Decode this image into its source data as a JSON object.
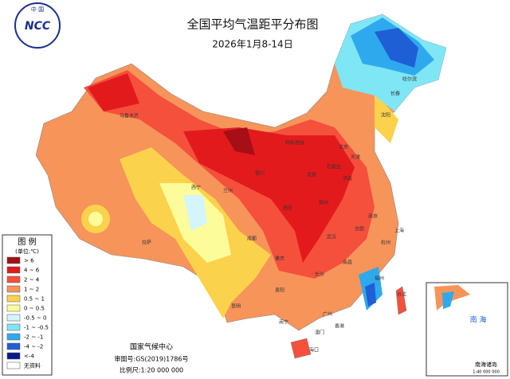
{
  "header": {
    "logo_top": "中 国",
    "logo_text": "NCC",
    "title": "全国平均气温距平分布图",
    "date": "2026年1月8-14日"
  },
  "legend": {
    "title": "图 例",
    "unit": "(单位:℃)",
    "items": [
      {
        "label": "> 6",
        "color": "#a50f15"
      },
      {
        "label": "4 ~ 6",
        "color": "#e31a1c"
      },
      {
        "label": "2 ~ 4",
        "color": "#f5503c"
      },
      {
        "label": "1 ~ 2",
        "color": "#f7945a"
      },
      {
        "label": "0.5 ~ 1",
        "color": "#fbd24b"
      },
      {
        "label": "0 ~ 0.5",
        "color": "#fdfc9a"
      },
      {
        "label": "-0.5 ~ 0",
        "color": "#d4f5fb"
      },
      {
        "label": "-1 ~ -0.5",
        "color": "#7ee6f5"
      },
      {
        "label": "-2 ~ -1",
        "color": "#2fa9ee"
      },
      {
        "label": "-4 ~ -2",
        "color": "#1f5fd6"
      },
      {
        "label": "<-4",
        "color": "#0a1a8c"
      },
      {
        "label": "无资料",
        "color": "#ffffff"
      }
    ]
  },
  "footer": {
    "agency": "国家气候中心",
    "map_no": "审图号:GS(2019)1786号",
    "scale": "比例尺:1:20 000 000"
  },
  "inset": {
    "sea": "南 海",
    "title": "南海诸岛",
    "scale": "1:40 000 000"
  },
  "cities": [
    "乌鲁木齐",
    "拉萨",
    "西宁",
    "兰州",
    "银川",
    "呼和浩特",
    "太原",
    "石家庄",
    "北京",
    "天津",
    "济南",
    "郑州",
    "西安",
    "成都",
    "重庆",
    "武汉",
    "长沙",
    "贵阳",
    "昆明",
    "南宁",
    "广州",
    "香港",
    "澳门",
    "海口",
    "台北",
    "福州",
    "南昌",
    "杭州",
    "上海",
    "南京",
    "合肥",
    "沈阳",
    "长春",
    "哈尔滨"
  ]
}
